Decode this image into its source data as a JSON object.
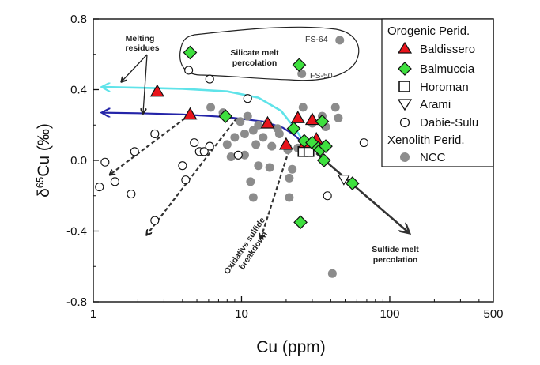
{
  "chart_data": {
    "type": "scatter",
    "xlabel": "Cu (ppm)",
    "ylabel_prefix": "δ",
    "ylabel_sup": "65",
    "ylabel_rest": "Cu (‰)",
    "x_scale": "log",
    "xlim": [
      1,
      500
    ],
    "ylim": [
      -0.8,
      0.8
    ],
    "x_ticks": [
      {
        "value": 1,
        "label": "1"
      },
      {
        "value": 10,
        "label": "10"
      },
      {
        "value": 100,
        "label": "100"
      },
      {
        "value": 500,
        "label": "500"
      }
    ],
    "y_ticks": [
      {
        "value": 0.8,
        "label": "0.8"
      },
      {
        "value": 0.4,
        "label": "0.4"
      },
      {
        "value": 0.0,
        "label": "0.0"
      },
      {
        "value": -0.4,
        "label": "-0.4"
      },
      {
        "value": -0.8,
        "label": "-0.8"
      }
    ],
    "legend": {
      "title_orogenic": "Orogenic Perid.",
      "title_xenolith": "Xenolith Perid.",
      "entries": [
        {
          "name": "Baldissero",
          "marker": "triangle",
          "color": "#e8141b"
        },
        {
          "name": "Balmuccia",
          "marker": "diamond",
          "color": "#3ee03e"
        },
        {
          "name": "Horoman",
          "marker": "square",
          "color": "#ffffff"
        },
        {
          "name": "Arami",
          "marker": "triangle-down",
          "color": "#ffffff"
        },
        {
          "name": "Dabie-Sulu",
          "marker": "circle-open",
          "color": "#ffffff"
        },
        {
          "name": "NCC",
          "marker": "circle-filled",
          "color": "#8c8c8c"
        }
      ]
    },
    "series": [
      {
        "name": "NCC",
        "marker": "circle-filled",
        "color": "#8c8c8c",
        "points": [
          [
            6.2,
            0.3
          ],
          [
            7.5,
            0.27
          ],
          [
            9.8,
            0.22
          ],
          [
            11,
            0.25
          ],
          [
            13,
            0.2
          ],
          [
            15,
            0.21
          ],
          [
            10.5,
            0.15
          ],
          [
            12,
            0.17
          ],
          [
            14,
            0.13
          ],
          [
            17.5,
            0.18
          ],
          [
            18,
            0.15
          ],
          [
            9,
            0.13
          ],
          [
            8,
            0.09
          ],
          [
            8.5,
            0.02
          ],
          [
            10.5,
            0.03
          ],
          [
            12.5,
            0.09
          ],
          [
            16,
            0.08
          ],
          [
            20.5,
            0.06
          ],
          [
            24,
            0.07
          ],
          [
            13,
            -0.03
          ],
          [
            15.5,
            -0.04
          ],
          [
            11.5,
            -0.12
          ],
          [
            21,
            -0.1
          ],
          [
            22,
            -0.05
          ],
          [
            12,
            -0.21
          ],
          [
            21,
            -0.21
          ],
          [
            30,
            0.21
          ],
          [
            37,
            0.19
          ],
          [
            35,
            0.25
          ],
          [
            43,
            0.3
          ],
          [
            45,
            0.24
          ],
          [
            26,
            0.3
          ],
          [
            46,
            0.68
          ],
          [
            25.5,
            0.49
          ],
          [
            41,
            -0.64
          ]
        ]
      },
      {
        "name": "Dabie-Sulu",
        "marker": "circle-open",
        "color": "#ffffff",
        "points": [
          [
            1.1,
            -0.15
          ],
          [
            1.2,
            -0.01
          ],
          [
            1.4,
            -0.12
          ],
          [
            1.8,
            -0.19
          ],
          [
            1.9,
            0.05
          ],
          [
            2.6,
            0.15
          ],
          [
            2.6,
            -0.34
          ],
          [
            4,
            -0.03
          ],
          [
            4.2,
            -0.11
          ],
          [
            4.8,
            0.1
          ],
          [
            5.2,
            0.05
          ],
          [
            5.6,
            0.05
          ],
          [
            6.1,
            0.08
          ],
          [
            6.1,
            0.46
          ],
          [
            4.4,
            0.51
          ],
          [
            11,
            0.35
          ],
          [
            9.5,
            0.03
          ],
          [
            38,
            -0.2
          ],
          [
            67,
            0.1
          ]
        ]
      },
      {
        "name": "Baldissero",
        "marker": "triangle",
        "color": "#e8141b",
        "points": [
          [
            2.7,
            0.39
          ],
          [
            4.5,
            0.26
          ],
          [
            15,
            0.21
          ],
          [
            20,
            0.09
          ],
          [
            24,
            0.24
          ],
          [
            30,
            0.23
          ],
          [
            32,
            0.12
          ],
          [
            27,
            0.1
          ]
        ]
      },
      {
        "name": "Balmuccia",
        "marker": "diamond",
        "color": "#3ee03e",
        "points": [
          [
            4.5,
            0.61
          ],
          [
            7.8,
            0.25
          ],
          [
            24.5,
            0.54
          ],
          [
            22.5,
            0.18
          ],
          [
            26.5,
            0.11
          ],
          [
            30,
            0.1
          ],
          [
            33,
            0.07
          ],
          [
            35,
            0.22
          ],
          [
            34,
            0.06
          ],
          [
            37,
            0.08
          ],
          [
            36,
            0.0
          ],
          [
            56,
            -0.13
          ],
          [
            25,
            -0.35
          ]
        ]
      },
      {
        "name": "Horoman",
        "marker": "square",
        "color": "#ffffff",
        "points": [
          [
            26,
            0.05
          ],
          [
            28.5,
            0.05
          ]
        ]
      },
      {
        "name": "Arami",
        "marker": "triangle-down",
        "color": "#ffffff",
        "points": [
          [
            49,
            -0.11
          ]
        ]
      }
    ],
    "annotations": {
      "melting_residues_line1": "Melting",
      "melting_residues_line2": "residues",
      "silicate_melt_line1": "Silicate melt",
      "silicate_melt_line2": "percolation",
      "fs64": "FS-64",
      "fs50": "FS-50",
      "sulfide_melt_line1": "Sulfide melt",
      "sulfide_melt_line2": "percolation",
      "oxidative_line1": "Oxidative sulfide",
      "oxidative_line2": "breakdown"
    },
    "curves": {
      "cyan_color": "#5fe3e9",
      "blue_color": "#2424a8",
      "cyan_trend": [
        [
          28,
          0.07
        ],
        [
          23,
          0.18
        ],
        [
          18.5,
          0.28
        ],
        [
          13,
          0.355
        ],
        [
          8,
          0.39
        ],
        [
          4,
          0.405
        ],
        [
          2.3,
          0.41
        ],
        [
          1.15,
          0.415
        ]
      ],
      "blue_trend": [
        [
          28,
          0.07
        ],
        [
          23,
          0.14
        ],
        [
          19,
          0.185
        ],
        [
          14,
          0.22
        ],
        [
          8,
          0.245
        ],
        [
          4,
          0.26
        ],
        [
          2,
          0.267
        ],
        [
          1.15,
          0.27
        ]
      ]
    }
  }
}
